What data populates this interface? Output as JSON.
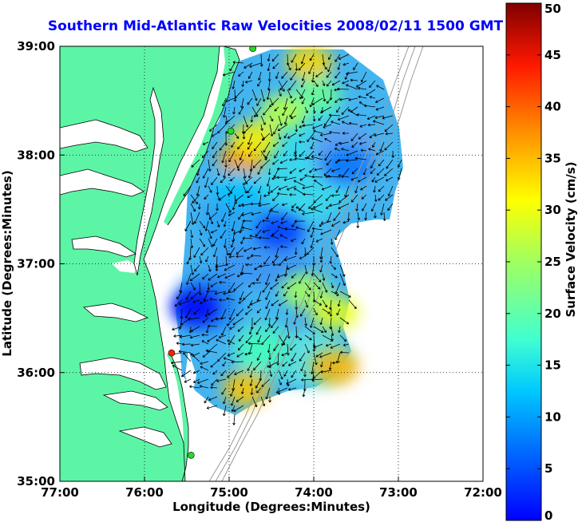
{
  "chart_data": {
    "type": "heatmap",
    "title": "Southern Mid-Atlantic Raw Velocities 2008/02/11 1500 GMT",
    "xlabel": "Longitude (Degrees:Minutes)",
    "ylabel": "Latitude (Degrees:Minutes)",
    "xlim": [
      -77,
      -72
    ],
    "ylim": [
      35,
      39
    ],
    "x_ticks": [
      -77,
      -76,
      -75,
      -74,
      -73,
      -72
    ],
    "x_tick_labels": [
      "77:00",
      "76:00",
      "75:00",
      "74:00",
      "73:00",
      "72:00"
    ],
    "y_ticks": [
      35,
      36,
      37,
      38,
      39
    ],
    "y_tick_labels": [
      "35:00",
      "36:00",
      "37:00",
      "38:00",
      "39:00"
    ],
    "grid": true,
    "colorbar": {
      "label": "Surface Velocity (cm/s)",
      "min": 0,
      "max": 50,
      "ticks": [
        0,
        5,
        10,
        15,
        20,
        25,
        30,
        35,
        40,
        45,
        50
      ],
      "colormap": "jet"
    },
    "colors": {
      "land": "#5cf5a6",
      "title": "#0000ff",
      "station_active": "#22dd22",
      "station_alert": "#ff2200"
    },
    "stations": [
      {
        "lon": -74.72,
        "lat": 38.98,
        "status": "active"
      },
      {
        "lon": -74.98,
        "lat": 38.22,
        "status": "active"
      },
      {
        "lon": -75.68,
        "lat": 36.18,
        "status": "alert"
      },
      {
        "lon": -75.45,
        "lat": 35.24,
        "status": "active"
      }
    ],
    "velocity_hotspots": [
      {
        "lon": -74.85,
        "lat": 37.95,
        "speed": 36
      },
      {
        "lon": -74.7,
        "lat": 38.15,
        "speed": 32
      },
      {
        "lon": -74.35,
        "lat": 38.4,
        "speed": 28
      },
      {
        "lon": -74.05,
        "lat": 38.85,
        "speed": 33
      },
      {
        "lon": -73.95,
        "lat": 38.55,
        "speed": 24
      },
      {
        "lon": -73.75,
        "lat": 36.55,
        "speed": 30
      },
      {
        "lon": -74.1,
        "lat": 36.75,
        "speed": 27
      },
      {
        "lon": -73.75,
        "lat": 36.05,
        "speed": 35
      },
      {
        "lon": -74.8,
        "lat": 35.85,
        "speed": 34
      },
      {
        "lon": -74.6,
        "lat": 36.2,
        "speed": 22
      },
      {
        "lon": -75.4,
        "lat": 36.6,
        "speed": 6
      },
      {
        "lon": -74.4,
        "lat": 37.3,
        "speed": 9
      },
      {
        "lon": -74.9,
        "lat": 37.7,
        "speed": 16
      },
      {
        "lon": -73.6,
        "lat": 37.9,
        "speed": 12
      }
    ]
  }
}
